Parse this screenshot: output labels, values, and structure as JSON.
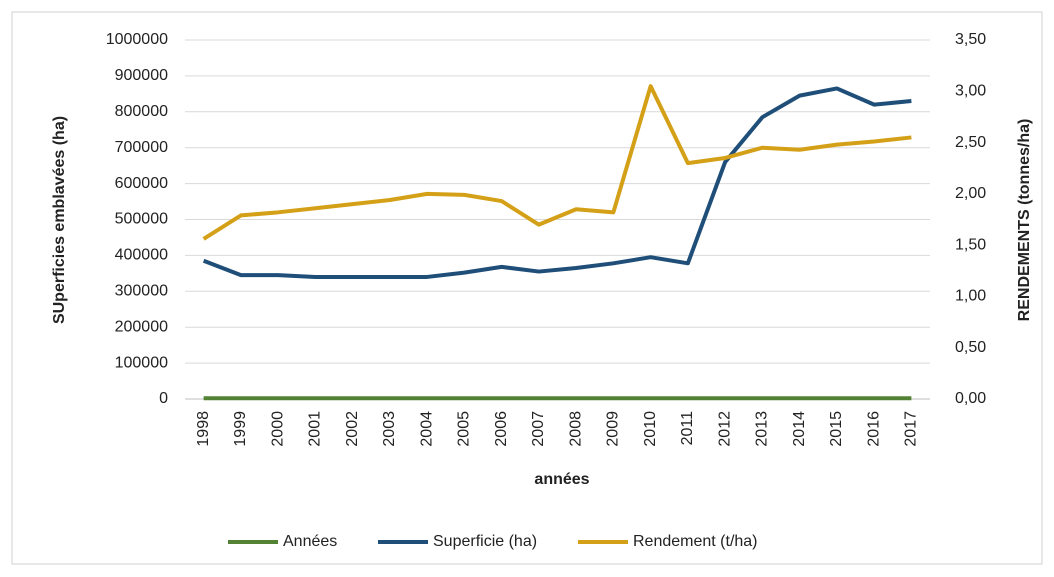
{
  "chart_data": {
    "type": "line",
    "x_label": "années",
    "y_label": "SUperficies emblavées (ha)",
    "y2_label": "RENDEMENTS (tonnes/ha)",
    "categories": [
      "1998",
      "1999",
      "2000",
      "2001",
      "2002",
      "2003",
      "2004",
      "2005",
      "2006",
      "2007",
      "2008",
      "2009",
      "2010",
      "2011",
      "2012",
      "2013",
      "2014",
      "2015",
      "2016",
      "2017"
    ],
    "series": [
      {
        "name": "Années",
        "color": "#548235",
        "values": [
          1998,
          1999,
          2000,
          2001,
          2002,
          2003,
          2004,
          2005,
          2006,
          2007,
          2008,
          2009,
          2010,
          2011,
          2012,
          2013,
          2014,
          2015,
          2016,
          2017
        ]
      },
      {
        "name": "Superficie (ha)",
        "color": "#1f4e79",
        "values": [
          385000,
          345000,
          345000,
          340000,
          340000,
          340000,
          340000,
          352000,
          368000,
          355000,
          365000,
          378000,
          395000,
          378000,
          660000,
          785000,
          845000,
          865000,
          820000,
          830000
        ]
      },
      {
        "name": "Rendement (t/ha)",
        "color": "#d4a017",
        "axis": "y2",
        "values": [
          1.56,
          1.79,
          1.82,
          1.86,
          1.9,
          1.94,
          2.0,
          1.99,
          1.93,
          1.7,
          1.85,
          1.82,
          3.05,
          2.3,
          2.35,
          2.45,
          2.43,
          2.48,
          2.51,
          2.55
        ]
      }
    ],
    "ylim": [
      0,
      1000000
    ],
    "yticks": [
      0,
      100000,
      200000,
      300000,
      400000,
      500000,
      600000,
      700000,
      800000,
      900000,
      1000000
    ],
    "y2lim": [
      0,
      3.5
    ],
    "y2ticks": [
      {
        "value": 0,
        "label": "0,00"
      },
      {
        "value": 0.5,
        "label": "0,50"
      },
      {
        "value": 1,
        "label": "1,00"
      },
      {
        "value": 1.5,
        "label": "1,50"
      },
      {
        "value": 2,
        "label": "2,00"
      },
      {
        "value": 2.5,
        "label": "2,50"
      },
      {
        "value": 3,
        "label": "3,00"
      },
      {
        "value": 3.5,
        "label": "3,50"
      }
    ],
    "grid": true,
    "legend": "bottom"
  }
}
